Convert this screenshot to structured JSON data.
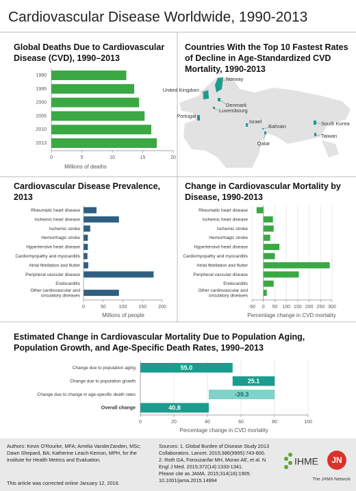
{
  "title": "Cardiovascular Disease Worldwide, 1990-2013",
  "chart_data": [
    {
      "type": "hbar",
      "title": "Global Deaths Due to Cardiovascular Disease (CVD), 1990–2013",
      "categories": [
        "1990",
        "1995",
        "2000",
        "2005",
        "2010",
        "2013"
      ],
      "values": [
        12.3,
        13.6,
        14.4,
        15.3,
        16.4,
        17.3
      ],
      "color": "#3aa843",
      "xlim": [
        0,
        20
      ],
      "xticks": [
        0,
        5,
        10,
        15,
        20
      ],
      "xlabel": "Millions of deaths",
      "grid": false
    },
    {
      "type": "hbar",
      "title": "Cardiovascular Disease Prevalence, 2013",
      "categories": [
        "Rheumatic heart disease",
        "Ischemic heart disease",
        "Ischemic stroke",
        "Hemorrhagic stroke",
        "Hypertensive heart disease",
        "Cardiomyopathy and myocarditis",
        "Atrial fibrillation and flutter",
        "Peripheral vascular disease",
        "Endocarditis",
        "Other cardiovascular and circulatory diseases"
      ],
      "values": [
        33,
        90,
        17,
        11,
        11,
        10,
        12,
        178,
        0,
        90
      ],
      "color": "#2e5f80",
      "xlim": [
        0,
        200
      ],
      "xticks": [
        0,
        50,
        100,
        150,
        200
      ],
      "xlabel": "Millions of people",
      "grid": false
    },
    {
      "type": "hbar",
      "title": "Change in Cardiovascular Mortality by Disease, 1990-2013",
      "categories": [
        "Rheumatic heart disease",
        "Ischemic heart disease",
        "Ischemic stroke",
        "Hemorrhagic stroke",
        "Hypertensive heart disease",
        "Cardiomyopathy and myocarditis",
        "Atrial fibrillation and flutter",
        "Peripheral vascular disease",
        "Endocarditis",
        "Other cardiovascular and circulatory diseases"
      ],
      "values": [
        -30,
        42,
        45,
        30,
        70,
        50,
        290,
        155,
        45,
        15
      ],
      "color": "#3aa843",
      "xlim": [
        -50,
        300
      ],
      "xticks": [
        -50,
        0,
        50,
        100,
        150,
        200,
        250,
        300
      ],
      "xlabel": "Percentage change in CVD mortality",
      "grid": true
    },
    {
      "type": "waterfall",
      "title": "Estimated Change in Cardiovascular Mortality Due to Population Aging, Population Growth, and Age-Specific Death Rates, 1990–2013",
      "categories": [
        "Change due to population aging",
        "Change due to population growth",
        "Change due to change in age-specific death rates",
        "Overall change"
      ],
      "values": [
        55.0,
        25.1,
        -39.3,
        40.8
      ],
      "value_labels": [
        "55.0",
        "25.1",
        "-39.3",
        "40.8"
      ],
      "color": "#1a9c8e",
      "negative_color": "#80d3ca",
      "xlim": [
        0,
        100
      ],
      "xticks": [
        0,
        20,
        40,
        60,
        80,
        100
      ],
      "xlabel": "Percentage change in CVD mortality",
      "grid": true
    }
  ],
  "map": {
    "title": "Countries With the Top 10 Fastest Rates of Decline in Age-Standardized CVD Mortality, 1990-2013",
    "countries": [
      "Norway",
      "United Kingdom",
      "Denmark",
      "Luxembourg",
      "Portugal",
      "Israel",
      "Bahrain",
      "Qatar",
      "South Korea",
      "Taiwan"
    ],
    "color": "#1a9c8e"
  },
  "footer": {
    "authors": "Authors: Kevin O’Rourke, MFA; Amelia VanderZanden, MSc; Dawn Shepard, BA; Katherine Leach-Kemon, MPH, for the Institute for Health Metrics and Evaluation.",
    "correction": "This article was corrected online January 12, 2016.",
    "sources": [
      "Sources: 1. Global Burden of Disease Study 2013 Collaborators. Lancet. 2015;386(9995):743-800.",
      "2. Roth GA, Forouzanfar MH, Moran AE, et al. N Engl J Med. 2015;372(14):1333-1341.",
      "Please cite as JAMA. 2015;314(18):1905. 10.1001/jama.2015.14994"
    ],
    "logo_ihme": "IHME",
    "logo_jn": "JN",
    "logo_jama": "The JAMA Network"
  }
}
